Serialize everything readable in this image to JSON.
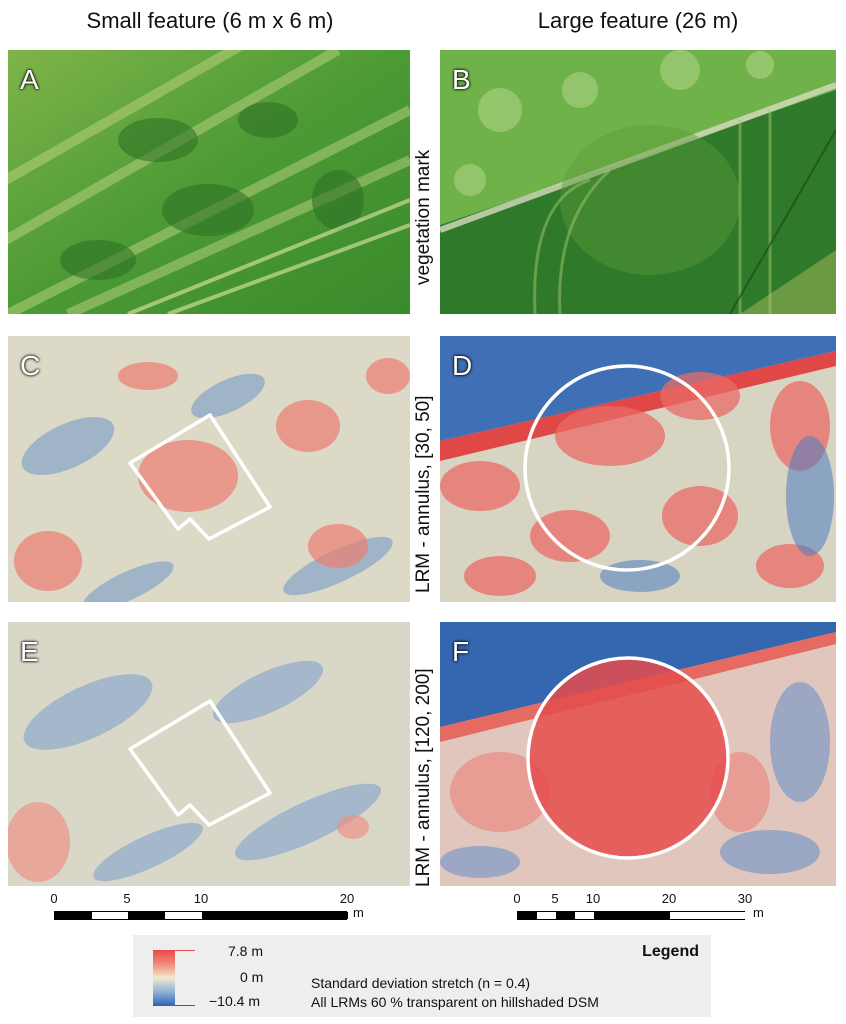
{
  "columns": {
    "left_title": "Small feature (6 m x 6 m)",
    "right_title": "Large feature (26 m)"
  },
  "panels": {
    "A": "A",
    "B": "B",
    "C": "C",
    "D": "D",
    "E": "E",
    "F": "F"
  },
  "row_labels": {
    "row1": "vegetation mark",
    "row2": "LRM - annulus, [30, 50]",
    "row3": "LRM - annulus, [120, 200]"
  },
  "scale_left": {
    "ticks": [
      "0",
      "5",
      "10",
      "20"
    ],
    "unit": "m"
  },
  "scale_right": {
    "ticks": [
      "0",
      "5",
      "10",
      "20",
      "30"
    ],
    "unit": "m"
  },
  "legend": {
    "title": "Legend",
    "max": "7.8 m",
    "mid": "0 m",
    "min": "−10.4 m",
    "line1": "Standard deviation stretch (n = 0.4)",
    "line2": "All LRMs 60 % transparent on hillshaded DSM"
  },
  "colors": {
    "high": "#e84a4a",
    "mid": "#f2ead0",
    "low": "#2f62b4",
    "vegetation": "#3f8f2a"
  }
}
